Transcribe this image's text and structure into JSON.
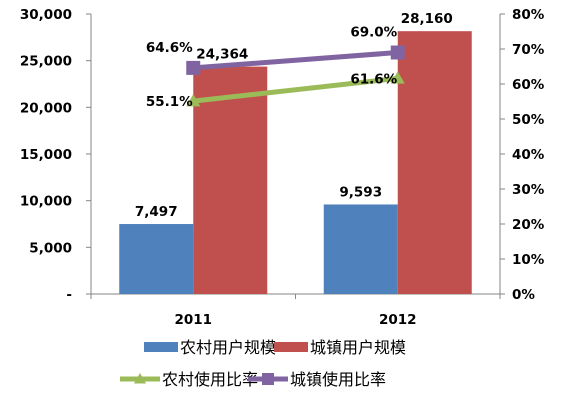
{
  "chart_data": {
    "type": "bar",
    "categories": [
      "2011",
      "2012"
    ],
    "series": [
      {
        "name": "农村用户规模",
        "kind": "bar",
        "axis": "left",
        "color": "#4F81BD",
        "values": [
          7497,
          9593
        ],
        "labels": [
          "7,497",
          "9,593"
        ]
      },
      {
        "name": "城镇用户规模",
        "kind": "bar",
        "axis": "left",
        "color": "#C0504D",
        "values": [
          24364,
          28160
        ],
        "labels": [
          "24,364",
          "28,160"
        ]
      },
      {
        "name": "农村使用比率",
        "kind": "line",
        "axis": "right",
        "color": "#9BBB59",
        "marker": "triangle",
        "values": [
          55.1,
          61.6
        ],
        "labels": [
          "55.1%",
          "61.6%"
        ]
      },
      {
        "name": "城镇使用比率",
        "kind": "line",
        "axis": "right",
        "color": "#8064A2",
        "marker": "square",
        "values": [
          64.6,
          69.0
        ],
        "labels": [
          "64.6%",
          "69.0%"
        ]
      }
    ],
    "y_left": {
      "ylim": [
        0,
        30000
      ],
      "ticks": [
        0,
        5000,
        10000,
        15000,
        20000,
        25000,
        30000
      ],
      "tick_labels": [
        "-",
        "5,000",
        "10,000",
        "15,000",
        "20,000",
        "25,000",
        "30,000"
      ]
    },
    "y_right": {
      "ylim": [
        0,
        80
      ],
      "ticks": [
        0,
        10,
        20,
        30,
        40,
        50,
        60,
        70,
        80
      ],
      "tick_labels": [
        "0%",
        "10%",
        "20%",
        "30%",
        "40%",
        "50%",
        "60%",
        "70%",
        "80%"
      ]
    },
    "grid": false,
    "legend": {
      "placement": "bottom",
      "rows": [
        [
          "农村用户规模",
          "城镇用户规模"
        ],
        [
          "农村使用比率",
          "城镇使用比率"
        ]
      ]
    }
  }
}
